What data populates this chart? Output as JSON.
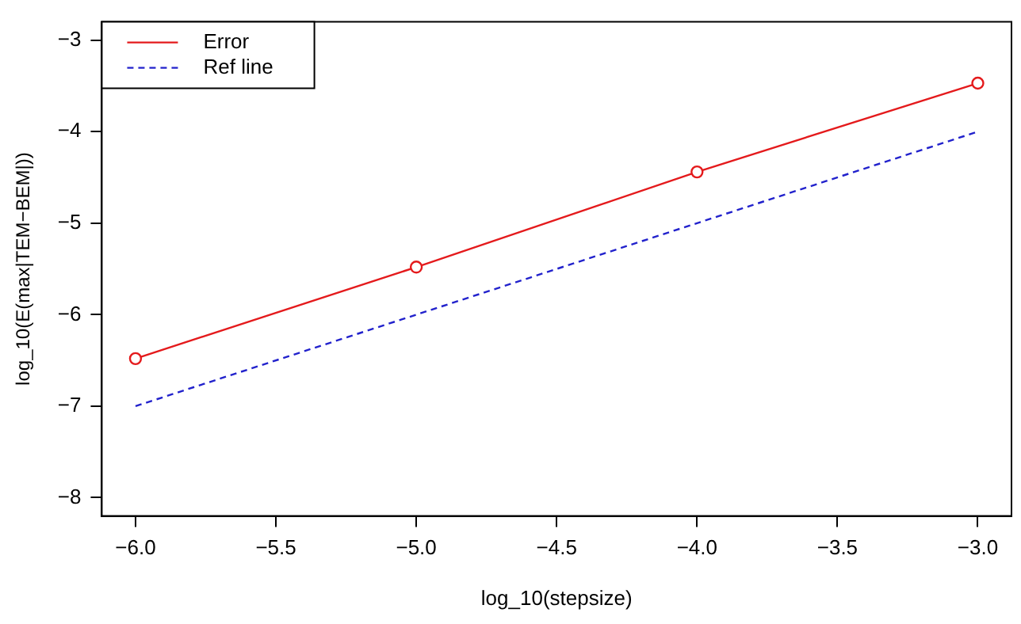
{
  "chart_data": {
    "type": "line",
    "xlabel": "log_10(stepsize)",
    "ylabel": "log_10(E(max|TEM−BEM|))",
    "x": [
      -6,
      -5,
      -4,
      -3
    ],
    "series": [
      {
        "name": "Error",
        "color": "#e41a1c",
        "values": [
          -6.48,
          -5.48,
          -4.44,
          -3.47
        ],
        "marker": "circle",
        "line_style": "solid"
      },
      {
        "name": "Ref line",
        "color": "#2222cc",
        "values": [
          -7,
          -6,
          -5,
          -4
        ],
        "marker": "none",
        "line_style": "dashed"
      }
    ],
    "xlim": [
      -6.12,
      -2.88
    ],
    "ylim": [
      -8.2,
      -2.8
    ],
    "xticks": [
      {
        "value": -6,
        "label": "−6.0"
      },
      {
        "value": -5.5,
        "label": "−5.5"
      },
      {
        "value": -5,
        "label": "−5.0"
      },
      {
        "value": -4.5,
        "label": "−4.5"
      },
      {
        "value": -4,
        "label": "−4.0"
      },
      {
        "value": -3.5,
        "label": "−3.5"
      },
      {
        "value": -3,
        "label": "−3.0"
      }
    ],
    "yticks": [
      {
        "value": -8,
        "label": "−8"
      },
      {
        "value": -7,
        "label": "−7"
      },
      {
        "value": -6,
        "label": "−6"
      },
      {
        "value": -5,
        "label": "−5"
      },
      {
        "value": -4,
        "label": "−4"
      },
      {
        "value": -3,
        "label": "−3"
      }
    ],
    "grid": false,
    "legend": "top left"
  }
}
